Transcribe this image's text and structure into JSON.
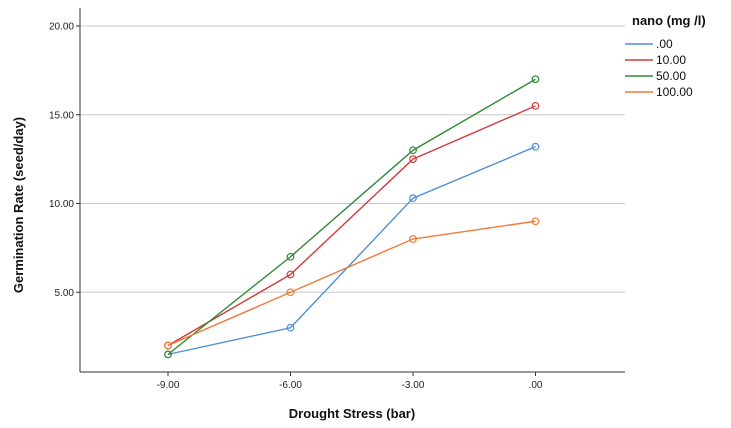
{
  "chart_data": {
    "type": "line",
    "xlabel": "Drought Stress (bar)",
    "ylabel": "Germination Rate (seed/day)",
    "categories": [
      "-9.00",
      "-6.00",
      "-3.00",
      ".00"
    ],
    "y_ticks": [
      "5.00",
      "10.00",
      "15.00",
      "20.00"
    ],
    "ylim": [
      0,
      20
    ],
    "grid": "horizontal",
    "legend_title": "nano (mg /l)",
    "legend_position": "top-right",
    "series": [
      {
        "name": ".00",
        "color": "#4f8fd6",
        "values": [
          1.5,
          3.0,
          10.3,
          13.2
        ]
      },
      {
        "name": "10.00",
        "color": "#d23a3a",
        "values": [
          2.0,
          6.0,
          12.5,
          15.5
        ]
      },
      {
        "name": "50.00",
        "color": "#2f8a36",
        "values": [
          1.5,
          7.0,
          13.0,
          17.0
        ]
      },
      {
        "name": "100.00",
        "color": "#f07a3a",
        "values": [
          2.0,
          5.0,
          8.0,
          9.0
        ]
      }
    ]
  }
}
